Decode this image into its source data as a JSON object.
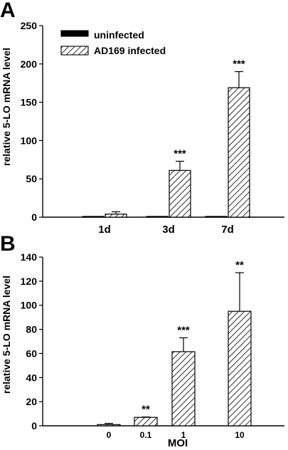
{
  "panels": {
    "a_letter": "A",
    "b_letter": "B"
  },
  "chart_data": [
    {
      "type": "bar",
      "panel": "A",
      "categories": [
        "1d",
        "3d",
        "7d"
      ],
      "ylabel": "relative 5-LO mRNA level",
      "xlabel": "",
      "ylim": [
        0,
        250
      ],
      "yticks": [
        0,
        50,
        100,
        150,
        200,
        250
      ],
      "legend_position": "top-left",
      "series": [
        {
          "name": "uninfected",
          "values": [
            1,
            1,
            1
          ],
          "errors": [
            0,
            0,
            0
          ],
          "fill": "solid",
          "color": "#000000"
        },
        {
          "name": "AD169 infected",
          "values": [
            4,
            61,
            169
          ],
          "errors": [
            3,
            12,
            21
          ],
          "fill": "hatched",
          "color": "#000000"
        }
      ],
      "annotations": [
        {
          "category": "3d",
          "series": 1,
          "text": "***"
        },
        {
          "category": "7d",
          "series": 1,
          "text": "***"
        }
      ]
    },
    {
      "type": "bar",
      "panel": "B",
      "categories": [
        "0",
        "0.1",
        "1",
        "10"
      ],
      "ylabel": "relative 5-LO mRNA level",
      "xlabel": "MOI",
      "ylim": [
        0,
        140
      ],
      "yticks": [
        0,
        20,
        40,
        60,
        80,
        100,
        120,
        140
      ],
      "series": [
        {
          "values": [
            1,
            7,
            61.5,
            95
          ],
          "errors": [
            1,
            0.3,
            11.5,
            32
          ],
          "fill": "hatched",
          "color": "#000000"
        }
      ],
      "annotations": [
        {
          "category": "0.1",
          "series": 0,
          "text": "**"
        },
        {
          "category": "1",
          "series": 0,
          "text": "***"
        },
        {
          "category": "10",
          "series": 0,
          "text": "**"
        }
      ]
    }
  ]
}
